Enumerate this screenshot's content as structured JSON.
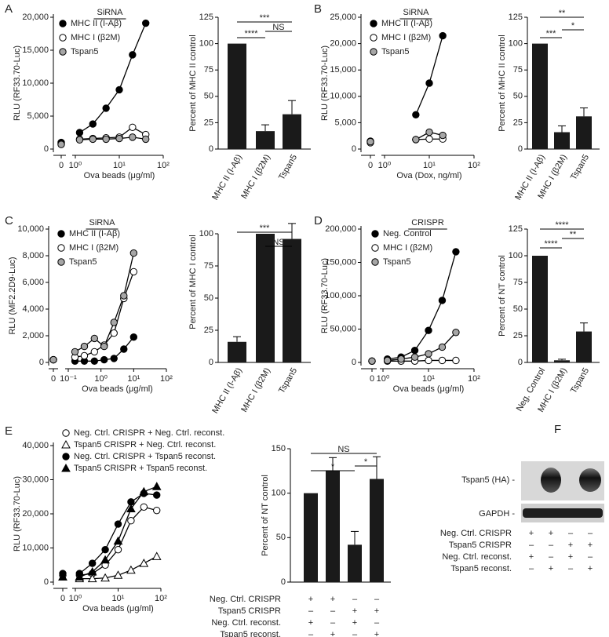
{
  "chart_data": [
    {
      "panel": "A",
      "type": "line",
      "legend_title": "SiRNA",
      "ylabel": "RLU (RF33.70-Luc)",
      "xlabel": "Ova beads (μg/ml)",
      "xscale": "log",
      "xlim": [
        1,
        100
      ],
      "xticks": [
        0,
        {
          "value": 1,
          "label": "10⁰"
        },
        {
          "value": 10,
          "label": "10¹"
        },
        {
          "value": 100,
          "label": "10²"
        }
      ],
      "ylim": [
        0,
        20000
      ],
      "yticks": [
        0,
        {
          "value": 5000,
          "label": "5,000"
        },
        {
          "value": 10000,
          "label": "10,000"
        },
        {
          "value": 15000,
          "label": "15,000"
        },
        {
          "value": 20000,
          "label": "20,000"
        }
      ],
      "x": [
        0,
        1.25,
        2.5,
        5,
        10,
        20,
        40
      ],
      "series": [
        {
          "name": "MHC II (I-Aβ)",
          "color": "#000000",
          "fill": "#000000",
          "marker": "circle",
          "values": [
            1000,
            2500,
            3800,
            6200,
            9000,
            14300,
            19100
          ]
        },
        {
          "name": "MHC I (β2M)",
          "color": "#000000",
          "fill": "#ffffff",
          "marker": "circle",
          "values": [
            800,
            1500,
            1600,
            1700,
            1800,
            3300,
            2200
          ]
        },
        {
          "name": "Tspan5",
          "color": "#000000",
          "fill": "#a6a6a6",
          "marker": "circle",
          "values": [
            700,
            1400,
            1500,
            1500,
            1600,
            1800,
            1500
          ]
        }
      ]
    },
    {
      "panel": "A",
      "type": "bar",
      "ylabel": "Percent of MHC II control",
      "categories": [
        "MHC II (I-Aβ)",
        "MHC I (β2M)",
        "Tspan5"
      ],
      "values": [
        100,
        17,
        33
      ],
      "errors": [
        0,
        6,
        13
      ],
      "color": "#1a1a1a",
      "ylim": [
        0,
        125
      ],
      "yticks": [
        0,
        25,
        50,
        75,
        100,
        125
      ],
      "annotations": [
        "***",
        "****",
        "NS"
      ]
    },
    {
      "panel": "B",
      "type": "line",
      "legend_title": "SiRNA",
      "ylabel": "RLU (RF33.70-Luc)",
      "xlabel": "Ova (Dox, ng/ml)",
      "xscale": "log",
      "xlim": [
        1,
        100
      ],
      "xticks": [
        0,
        {
          "value": 1,
          "label": "10⁰"
        },
        {
          "value": 10,
          "label": "10¹"
        },
        {
          "value": 100,
          "label": "10²"
        }
      ],
      "ylim": [
        0,
        25000
      ],
      "yticks": [
        0,
        {
          "value": 5000,
          "label": "5,000"
        },
        {
          "value": 10000,
          "label": "10,000"
        },
        {
          "value": 15000,
          "label": "15,000"
        },
        {
          "value": 20000,
          "label": "20,000"
        },
        {
          "value": 25000,
          "label": "25,000"
        }
      ],
      "x": [
        0,
        5,
        10,
        20
      ],
      "series": [
        {
          "name": "MHC II (I-Aβ)",
          "color": "#000000",
          "fill": "#000000",
          "marker": "circle",
          "values": [
            1500,
            6500,
            12500,
            21500
          ]
        },
        {
          "name": "MHC I (β2M)",
          "color": "#000000",
          "fill": "#ffffff",
          "marker": "circle",
          "values": [
            1200,
            1800,
            1900,
            1900
          ]
        },
        {
          "name": "Tspan5",
          "color": "#000000",
          "fill": "#a6a6a6",
          "marker": "circle",
          "values": [
            1400,
            1800,
            3200,
            2600
          ]
        }
      ]
    },
    {
      "panel": "B",
      "type": "bar",
      "ylabel": "Percent of MHC II control",
      "categories": [
        "MHC II (I-Aβ)",
        "MHC I (β2M)",
        "Tspan5"
      ],
      "values": [
        100,
        16,
        31
      ],
      "errors": [
        0,
        6,
        8
      ],
      "color": "#1a1a1a",
      "ylim": [
        0,
        125
      ],
      "yticks": [
        0,
        25,
        50,
        75,
        100,
        125
      ],
      "annotations": [
        "**",
        "***",
        "*"
      ]
    },
    {
      "panel": "C",
      "type": "line",
      "legend_title": "SiRNA",
      "ylabel": "RLU (MF2.2D9-Luc)",
      "xlabel": "Ova beads (μg/ml)",
      "xscale": "log",
      "xlim": [
        0.1,
        100
      ],
      "xticks": [
        0,
        {
          "value": 0.1,
          "label": "10⁻¹"
        },
        {
          "value": 1,
          "label": "10⁰"
        },
        {
          "value": 10,
          "label": "10¹"
        },
        {
          "value": 100,
          "label": "10²"
        }
      ],
      "ylim": [
        0,
        10000
      ],
      "yticks": [
        0,
        {
          "value": 2000,
          "label": "2,000"
        },
        {
          "value": 4000,
          "label": "4,000"
        },
        {
          "value": 6000,
          "label": "6,000"
        },
        {
          "value": 8000,
          "label": "8,000"
        },
        {
          "value": 10000,
          "label": "10,000"
        }
      ],
      "x": [
        0,
        0.16,
        0.31,
        0.63,
        1.25,
        2.5,
        5,
        10
      ],
      "series": [
        {
          "name": "MHC II (I-Aβ)",
          "color": "#000000",
          "fill": "#000000",
          "marker": "circle",
          "values": [
            200,
            100,
            100,
            100,
            200,
            300,
            1000,
            1900
          ]
        },
        {
          "name": "MHC I (β2M)",
          "color": "#000000",
          "fill": "#ffffff",
          "marker": "circle",
          "values": [
            200,
            400,
            500,
            800,
            1300,
            2200,
            4800,
            6800
          ]
        },
        {
          "name": "Tspan5",
          "color": "#000000",
          "fill": "#a6a6a6",
          "marker": "circle",
          "values": [
            200,
            800,
            1200,
            1800,
            1200,
            3000,
            5000,
            8200
          ]
        }
      ]
    },
    {
      "panel": "C",
      "type": "bar",
      "ylabel": "Percent of MHC I control",
      "categories": [
        "MHC II (I-Aβ)",
        "MHC I (β2M)",
        "Tspan5"
      ],
      "values": [
        16,
        100,
        96
      ],
      "errors": [
        4,
        0,
        12
      ],
      "color": "#1a1a1a",
      "ylim": [
        0,
        125
      ],
      "yticks": [
        0,
        25,
        50,
        75,
        100
      ],
      "annotations": [
        "***",
        "NS"
      ]
    },
    {
      "panel": "D",
      "type": "line",
      "legend_title": "CRISPR",
      "ylabel": "RLU (RF33.70-Luc)",
      "xlabel": "Ova beads (μg/ml)",
      "xscale": "log",
      "xlim": [
        1,
        100
      ],
      "xticks": [
        0,
        {
          "value": 1,
          "label": "10⁰"
        },
        {
          "value": 10,
          "label": "10¹"
        },
        {
          "value": 100,
          "label": "10²"
        }
      ],
      "ylim": [
        0,
        200000
      ],
      "yticks": [
        0,
        {
          "value": 50000,
          "label": "50,000"
        },
        {
          "value": 100000,
          "label": "100,000"
        },
        {
          "value": 150000,
          "label": "150,000"
        },
        {
          "value": 200000,
          "label": "200,000"
        }
      ],
      "x": [
        0,
        1.25,
        2.5,
        5,
        10,
        20,
        40
      ],
      "series": [
        {
          "name": "Neg. Control",
          "color": "#000000",
          "fill": "#000000",
          "marker": "circle",
          "values": [
            2000,
            5000,
            8000,
            18000,
            48000,
            93000,
            166000
          ]
        },
        {
          "name": "MHC I (β2M)",
          "color": "#000000",
          "fill": "#ffffff",
          "marker": "circle",
          "values": [
            2000,
            2000,
            2000,
            2000,
            3000,
            3000,
            3000
          ]
        },
        {
          "name": "Tspan5",
          "color": "#000000",
          "fill": "#a6a6a6",
          "marker": "circle",
          "values": [
            2000,
            3000,
            5000,
            8000,
            13000,
            23000,
            45000
          ]
        }
      ]
    },
    {
      "panel": "D",
      "type": "bar",
      "ylabel": "Percent of NT control",
      "categories": [
        "Neg. Control",
        "MHC I (β2M)",
        "Tspan5"
      ],
      "values": [
        100,
        2,
        29
      ],
      "errors": [
        0,
        1,
        8
      ],
      "color": "#1a1a1a",
      "ylim": [
        0,
        125
      ],
      "yticks": [
        0,
        25,
        50,
        75,
        100,
        125
      ],
      "annotations": [
        "****",
        "****",
        "**"
      ]
    },
    {
      "panel": "E",
      "type": "line",
      "ylabel": "RLU (RF33.70-Luc)",
      "xlabel": "Ova beads (μg/ml)",
      "xscale": "log",
      "xlim": [
        1,
        100
      ],
      "xticks": [
        0,
        {
          "value": 1,
          "label": "10⁰"
        },
        {
          "value": 10,
          "label": "10¹"
        },
        {
          "value": 100,
          "label": "10²"
        }
      ],
      "ylim": [
        0,
        40000
      ],
      "yticks": [
        0,
        {
          "value": 10000,
          "label": "10,000"
        },
        {
          "value": 20000,
          "label": "20,000"
        },
        {
          "value": 30000,
          "label": "30,000"
        },
        {
          "value": 40000,
          "label": "40,000"
        }
      ],
      "x": [
        0,
        1.25,
        2.5,
        5,
        10,
        20,
        40,
        80
      ],
      "series": [
        {
          "name": "Neg. Ctrl. CRISPR + Neg. Ctrl. reconst.",
          "color": "#000000",
          "fill": "#ffffff",
          "marker": "circle",
          "values": [
            2000,
            2000,
            2500,
            5000,
            9500,
            18000,
            22000,
            21000
          ]
        },
        {
          "name": "Tspan5 CRISPR + Neg. Ctrl. reconst.",
          "color": "#000000",
          "fill": "#ffffff",
          "marker": "triangle",
          "values": [
            1500,
            1000,
            1000,
            1200,
            2000,
            3500,
            5500,
            7500
          ]
        },
        {
          "name": "Neg. Ctrl. CRISPR + Tspan5 reconst.",
          "color": "#000000",
          "fill": "#000000",
          "marker": "circle",
          "values": [
            2500,
            2500,
            5500,
            9500,
            17000,
            23500,
            26000,
            25500
          ]
        },
        {
          "name": "Tspan5 CRISPR + Tspan5 reconst.",
          "color": "#000000",
          "fill": "#000000",
          "marker": "triangle",
          "values": [
            1500,
            1500,
            3000,
            6500,
            12000,
            21500,
            26500,
            28000
          ]
        }
      ]
    },
    {
      "panel": "E",
      "type": "bar",
      "ylabel": "Percent of NT control",
      "categories": [
        null,
        null,
        null,
        null
      ],
      "values": [
        100,
        125,
        42,
        116
      ],
      "errors": [
        0,
        15,
        15,
        25
      ],
      "color": "#1a1a1a",
      "ylim": [
        0,
        150
      ],
      "yticks": [
        0,
        50,
        100,
        150
      ],
      "annotations": [
        "NS",
        "*",
        "*"
      ],
      "condition_table": [
        {
          "label": "Neg. Ctrl. CRISPR",
          "cells": [
            "+",
            "+",
            "–",
            "–"
          ]
        },
        {
          "label": "Tspan5 CRISPR",
          "cells": [
            "–",
            "–",
            "+",
            "+"
          ]
        },
        {
          "label": "Neg. Ctrl. reconst.",
          "cells": [
            "+",
            "–",
            "+",
            "–"
          ]
        },
        {
          "label": "Tspan5 reconst.",
          "cells": [
            "–",
            "+",
            "–",
            "+"
          ]
        }
      ]
    }
  ],
  "blot": {
    "panel": "F",
    "bands": [
      "Tspan5 (HA) -",
      "GAPDH -"
    ],
    "condition_table": [
      {
        "label": "Neg. Ctrl. CRISPR",
        "cells": [
          "+",
          "+",
          "–",
          "–"
        ]
      },
      {
        "label": "Tspan5 CRISPR",
        "cells": [
          "–",
          "–",
          "+",
          "+"
        ]
      },
      {
        "label": "Neg. Ctrl. reconst.",
        "cells": [
          "+",
          "–",
          "+",
          "–"
        ]
      },
      {
        "label": "Tspan5 reconst.",
        "cells": [
          "–",
          "+",
          "–",
          "+"
        ]
      }
    ]
  }
}
